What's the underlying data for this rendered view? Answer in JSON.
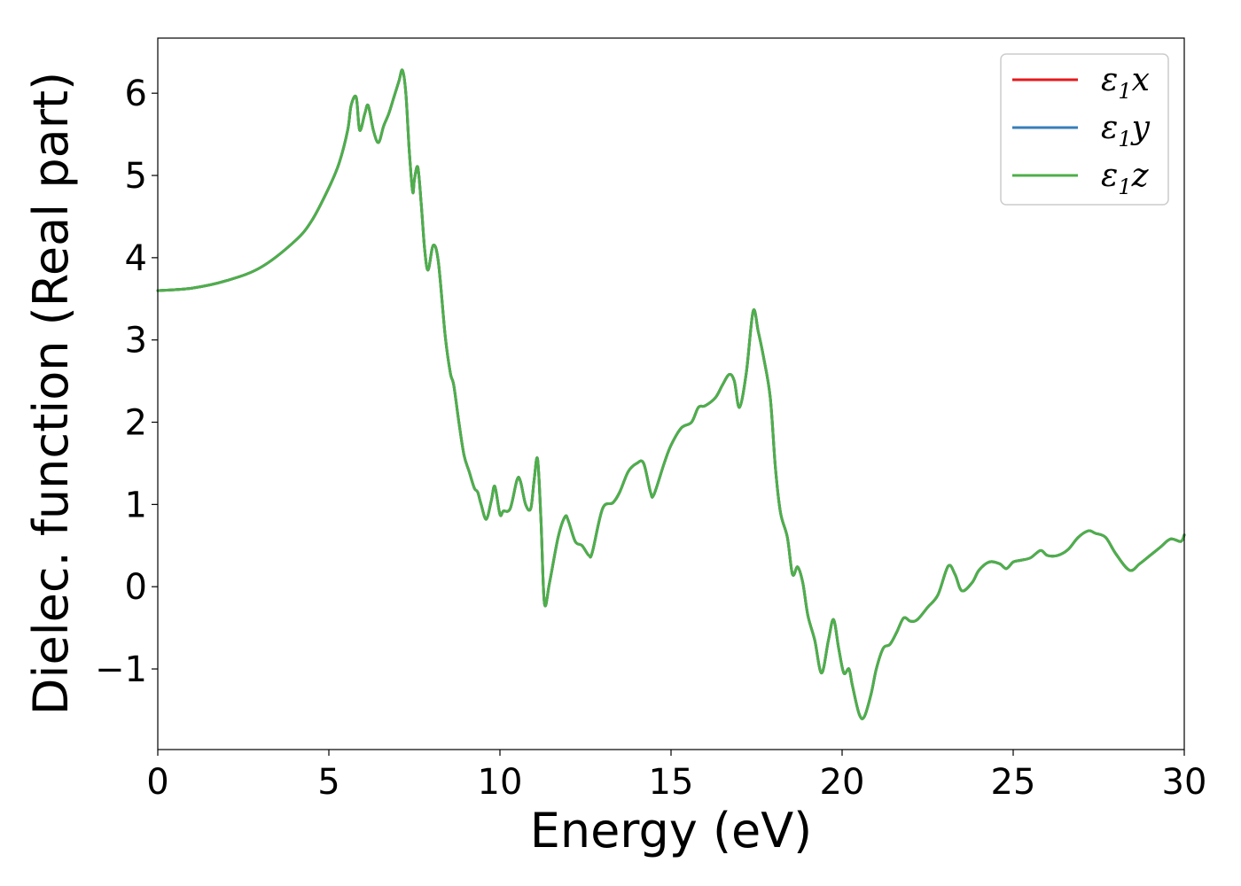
{
  "chart_data": {
    "type": "line",
    "title": "",
    "xlabel": "Energy (eV)",
    "ylabel": "Dielec. function (Real part)",
    "xlim": [
      0,
      30
    ],
    "ylim": [
      -1.98,
      6.67
    ],
    "xticks": [
      0,
      5,
      10,
      15,
      20,
      25,
      30
    ],
    "xtick_labels": [
      "0",
      "5",
      "10",
      "15",
      "20",
      "25",
      "30"
    ],
    "yticks": [
      -1,
      0,
      1,
      2,
      3,
      4,
      5,
      6
    ],
    "ytick_labels": [
      "−1",
      "0",
      "1",
      "2",
      "3",
      "4",
      "5",
      "6"
    ],
    "grid": false,
    "legend_position": "top-right",
    "series": [
      {
        "name": "ε1x",
        "name_base": "ε",
        "name_sub": "1",
        "name_tail": "x",
        "color": "#e41a1c",
        "x": [
          0.0,
          1.0,
          2.0,
          3.0,
          4.0,
          4.5,
          5.0,
          5.3,
          5.55,
          5.65,
          5.8,
          5.9,
          6.05,
          6.15,
          6.3,
          6.45,
          6.6,
          6.75,
          6.9,
          7.05,
          7.15,
          7.25,
          7.35,
          7.45,
          7.5,
          7.6,
          7.7,
          7.8,
          7.9,
          8.05,
          8.2,
          8.4,
          8.55,
          8.65,
          8.8,
          8.95,
          9.1,
          9.25,
          9.35,
          9.45,
          9.6,
          9.75,
          9.85,
          10.0,
          10.1,
          10.3,
          10.5,
          10.6,
          10.75,
          10.9,
          11.0,
          11.1,
          11.2,
          11.3,
          11.45,
          11.7,
          11.9,
          12.0,
          12.2,
          12.4,
          12.6,
          12.7,
          13.0,
          13.3,
          13.5,
          13.75,
          14.0,
          14.2,
          14.4,
          14.5,
          14.8,
          15.0,
          15.3,
          15.6,
          15.8,
          16.0,
          16.3,
          16.5,
          16.7,
          16.85,
          17.0,
          17.2,
          17.4,
          17.55,
          17.7,
          17.9,
          18.05,
          18.2,
          18.4,
          18.55,
          18.7,
          18.85,
          19.0,
          19.2,
          19.4,
          19.6,
          19.75,
          19.9,
          20.05,
          20.2,
          20.3,
          20.5,
          20.65,
          20.85,
          21.0,
          21.2,
          21.4,
          21.6,
          21.8,
          22.0,
          22.2,
          22.5,
          22.8,
          23.1,
          23.3,
          23.5,
          23.8,
          24.0,
          24.3,
          24.6,
          24.8,
          25.0,
          25.2,
          25.5,
          25.8,
          26.0,
          26.3,
          26.6,
          26.9,
          27.2,
          27.4,
          27.7,
          28.0,
          28.4,
          28.7,
          29.0,
          29.3,
          29.6,
          29.9,
          30.0
        ],
        "y": [
          3.6,
          3.63,
          3.72,
          3.88,
          4.2,
          4.45,
          4.85,
          5.15,
          5.55,
          5.85,
          5.95,
          5.55,
          5.75,
          5.85,
          5.55,
          5.4,
          5.6,
          5.75,
          5.95,
          6.15,
          6.28,
          6.0,
          5.3,
          4.8,
          4.95,
          5.1,
          4.65,
          4.1,
          3.85,
          4.15,
          3.95,
          3.05,
          2.6,
          2.45,
          2.0,
          1.6,
          1.4,
          1.2,
          1.15,
          1.0,
          0.82,
          1.05,
          1.22,
          0.88,
          0.92,
          0.95,
          1.3,
          1.28,
          1.0,
          0.95,
          1.3,
          1.55,
          0.8,
          -0.2,
          0.05,
          0.6,
          0.85,
          0.8,
          0.55,
          0.5,
          0.38,
          0.42,
          0.95,
          1.02,
          1.15,
          1.4,
          1.5,
          1.5,
          1.15,
          1.12,
          1.5,
          1.72,
          1.93,
          2.0,
          2.18,
          2.2,
          2.3,
          2.45,
          2.58,
          2.5,
          2.18,
          2.6,
          3.35,
          3.1,
          2.8,
          2.3,
          1.45,
          0.9,
          0.6,
          0.15,
          0.24,
          0.05,
          -0.35,
          -0.65,
          -1.05,
          -0.65,
          -0.4,
          -0.75,
          -1.05,
          -1.0,
          -1.2,
          -1.55,
          -1.58,
          -1.3,
          -1.0,
          -0.75,
          -0.7,
          -0.55,
          -0.38,
          -0.42,
          -0.4,
          -0.25,
          -0.1,
          0.25,
          0.15,
          -0.05,
          0.05,
          0.2,
          0.3,
          0.28,
          0.22,
          0.3,
          0.32,
          0.35,
          0.44,
          0.38,
          0.38,
          0.45,
          0.6,
          0.68,
          0.65,
          0.6,
          0.4,
          0.2,
          0.28,
          0.38,
          0.48,
          0.58,
          0.55,
          0.63
        ]
      },
      {
        "name": "ε1y",
        "name_base": "ε",
        "name_sub": "1",
        "name_tail": "y",
        "color": "#377eb8",
        "x": [
          0.0,
          1.0,
          2.0,
          3.0,
          4.0,
          4.5,
          5.0,
          5.3,
          5.55,
          5.65,
          5.8,
          5.9,
          6.05,
          6.15,
          6.3,
          6.45,
          6.6,
          6.75,
          6.9,
          7.05,
          7.15,
          7.25,
          7.35,
          7.45,
          7.5,
          7.6,
          7.7,
          7.8,
          7.9,
          8.05,
          8.2,
          8.4,
          8.55,
          8.65,
          8.8,
          8.95,
          9.1,
          9.25,
          9.35,
          9.45,
          9.6,
          9.75,
          9.85,
          10.0,
          10.1,
          10.3,
          10.5,
          10.6,
          10.75,
          10.9,
          11.0,
          11.1,
          11.2,
          11.3,
          11.45,
          11.7,
          11.9,
          12.0,
          12.2,
          12.4,
          12.6,
          12.7,
          13.0,
          13.3,
          13.5,
          13.75,
          14.0,
          14.2,
          14.4,
          14.5,
          14.8,
          15.0,
          15.3,
          15.6,
          15.8,
          16.0,
          16.3,
          16.5,
          16.7,
          16.85,
          17.0,
          17.2,
          17.4,
          17.55,
          17.7,
          17.9,
          18.05,
          18.2,
          18.4,
          18.55,
          18.7,
          18.85,
          19.0,
          19.2,
          19.4,
          19.6,
          19.75,
          19.9,
          20.05,
          20.2,
          20.3,
          20.5,
          20.65,
          20.85,
          21.0,
          21.2,
          21.4,
          21.6,
          21.8,
          22.0,
          22.2,
          22.5,
          22.8,
          23.1,
          23.3,
          23.5,
          23.8,
          24.0,
          24.3,
          24.6,
          24.8,
          25.0,
          25.2,
          25.5,
          25.8,
          26.0,
          26.3,
          26.6,
          26.9,
          27.2,
          27.4,
          27.7,
          28.0,
          28.4,
          28.7,
          29.0,
          29.3,
          29.6,
          29.9,
          30.0
        ],
        "y": [
          3.6,
          3.63,
          3.72,
          3.88,
          4.2,
          4.45,
          4.85,
          5.15,
          5.55,
          5.85,
          5.95,
          5.55,
          5.75,
          5.85,
          5.55,
          5.4,
          5.6,
          5.75,
          5.95,
          6.15,
          6.28,
          6.0,
          5.3,
          4.8,
          4.95,
          5.1,
          4.65,
          4.1,
          3.85,
          4.15,
          3.95,
          3.05,
          2.6,
          2.45,
          2.0,
          1.6,
          1.4,
          1.2,
          1.15,
          1.0,
          0.82,
          1.05,
          1.22,
          0.88,
          0.92,
          0.95,
          1.3,
          1.28,
          1.0,
          0.95,
          1.3,
          1.55,
          0.8,
          -0.2,
          0.05,
          0.6,
          0.85,
          0.8,
          0.55,
          0.5,
          0.38,
          0.42,
          0.95,
          1.02,
          1.15,
          1.4,
          1.5,
          1.5,
          1.15,
          1.12,
          1.5,
          1.72,
          1.93,
          2.0,
          2.18,
          2.2,
          2.3,
          2.45,
          2.58,
          2.5,
          2.18,
          2.6,
          3.35,
          3.1,
          2.8,
          2.3,
          1.45,
          0.9,
          0.6,
          0.15,
          0.24,
          0.05,
          -0.35,
          -0.65,
          -1.05,
          -0.65,
          -0.4,
          -0.75,
          -1.05,
          -1.0,
          -1.2,
          -1.55,
          -1.58,
          -1.3,
          -1.0,
          -0.75,
          -0.7,
          -0.55,
          -0.38,
          -0.42,
          -0.4,
          -0.25,
          -0.1,
          0.25,
          0.15,
          -0.05,
          0.05,
          0.2,
          0.3,
          0.28,
          0.22,
          0.3,
          0.32,
          0.35,
          0.44,
          0.38,
          0.38,
          0.45,
          0.6,
          0.68,
          0.65,
          0.6,
          0.4,
          0.2,
          0.28,
          0.38,
          0.48,
          0.58,
          0.55,
          0.63
        ]
      },
      {
        "name": "ε1z",
        "name_base": "ε",
        "name_sub": "1",
        "name_tail": "z",
        "color": "#4daf4a",
        "x": [
          0.0,
          1.0,
          2.0,
          3.0,
          4.0,
          4.5,
          5.0,
          5.3,
          5.55,
          5.65,
          5.8,
          5.9,
          6.05,
          6.15,
          6.3,
          6.45,
          6.6,
          6.75,
          6.9,
          7.05,
          7.15,
          7.25,
          7.35,
          7.45,
          7.5,
          7.6,
          7.7,
          7.8,
          7.9,
          8.05,
          8.2,
          8.4,
          8.55,
          8.65,
          8.8,
          8.95,
          9.1,
          9.25,
          9.35,
          9.45,
          9.6,
          9.75,
          9.85,
          10.0,
          10.1,
          10.3,
          10.5,
          10.6,
          10.75,
          10.9,
          11.0,
          11.1,
          11.2,
          11.3,
          11.45,
          11.7,
          11.9,
          12.0,
          12.2,
          12.4,
          12.6,
          12.7,
          13.0,
          13.3,
          13.5,
          13.75,
          14.0,
          14.2,
          14.4,
          14.5,
          14.8,
          15.0,
          15.3,
          15.6,
          15.8,
          16.0,
          16.3,
          16.5,
          16.7,
          16.85,
          17.0,
          17.2,
          17.4,
          17.55,
          17.7,
          17.9,
          18.05,
          18.2,
          18.4,
          18.55,
          18.7,
          18.85,
          19.0,
          19.2,
          19.4,
          19.6,
          19.75,
          19.9,
          20.05,
          20.2,
          20.3,
          20.5,
          20.65,
          20.85,
          21.0,
          21.2,
          21.4,
          21.6,
          21.8,
          22.0,
          22.2,
          22.5,
          22.8,
          23.1,
          23.3,
          23.5,
          23.8,
          24.0,
          24.3,
          24.6,
          24.8,
          25.0,
          25.2,
          25.5,
          25.8,
          26.0,
          26.3,
          26.6,
          26.9,
          27.2,
          27.4,
          27.7,
          28.0,
          28.4,
          28.7,
          29.0,
          29.3,
          29.6,
          29.9,
          30.0
        ],
        "y": [
          3.6,
          3.63,
          3.72,
          3.88,
          4.2,
          4.45,
          4.85,
          5.15,
          5.55,
          5.85,
          5.95,
          5.55,
          5.75,
          5.85,
          5.55,
          5.4,
          5.6,
          5.75,
          5.95,
          6.15,
          6.28,
          6.0,
          5.3,
          4.8,
          4.95,
          5.1,
          4.65,
          4.1,
          3.85,
          4.15,
          3.95,
          3.05,
          2.6,
          2.45,
          2.0,
          1.6,
          1.4,
          1.2,
          1.15,
          1.0,
          0.82,
          1.05,
          1.22,
          0.88,
          0.92,
          0.95,
          1.3,
          1.28,
          1.0,
          0.95,
          1.3,
          1.55,
          0.8,
          -0.2,
          0.05,
          0.6,
          0.85,
          0.8,
          0.55,
          0.5,
          0.38,
          0.42,
          0.95,
          1.02,
          1.15,
          1.4,
          1.5,
          1.5,
          1.15,
          1.12,
          1.5,
          1.72,
          1.93,
          2.0,
          2.18,
          2.2,
          2.3,
          2.45,
          2.58,
          2.5,
          2.18,
          2.6,
          3.35,
          3.1,
          2.8,
          2.3,
          1.45,
          0.9,
          0.6,
          0.15,
          0.24,
          0.05,
          -0.35,
          -0.65,
          -1.05,
          -0.65,
          -0.4,
          -0.75,
          -1.05,
          -1.0,
          -1.2,
          -1.55,
          -1.58,
          -1.3,
          -1.0,
          -0.75,
          -0.7,
          -0.55,
          -0.38,
          -0.42,
          -0.4,
          -0.25,
          -0.1,
          0.25,
          0.15,
          -0.05,
          0.05,
          0.2,
          0.3,
          0.28,
          0.22,
          0.3,
          0.32,
          0.35,
          0.44,
          0.38,
          0.38,
          0.45,
          0.6,
          0.68,
          0.65,
          0.6,
          0.4,
          0.2,
          0.28,
          0.38,
          0.48,
          0.58,
          0.55,
          0.63
        ]
      }
    ]
  }
}
